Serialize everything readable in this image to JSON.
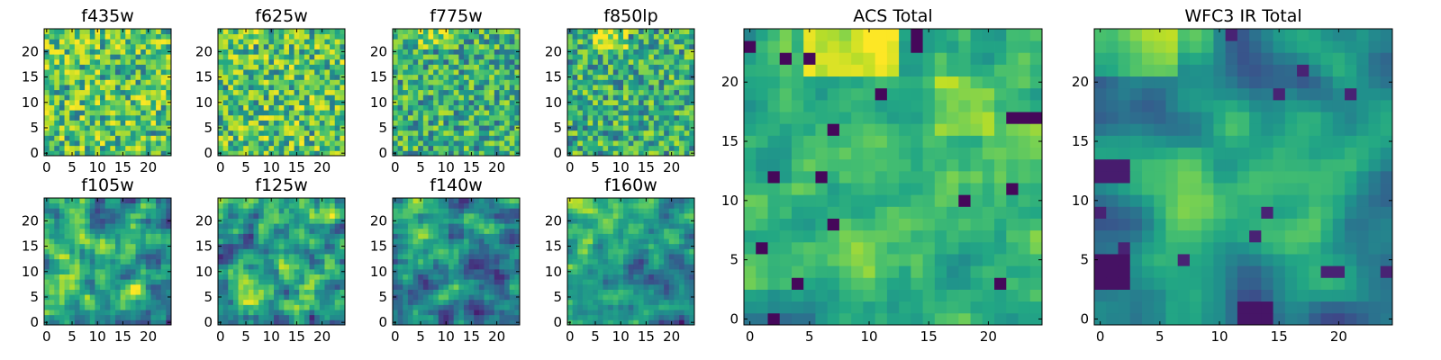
{
  "chart_data": {
    "type": "heatmap",
    "colormap": "viridis",
    "grid": false,
    "panels": [
      {
        "title": "f435w",
        "rows": 25,
        "cols": 25,
        "xticks": [
          0,
          5,
          10,
          15,
          20
        ],
        "yticks": [
          0,
          5,
          10,
          15,
          20
        ],
        "xlim": [
          -0.5,
          24.5
        ],
        "ylim": [
          -0.5,
          24.5
        ],
        "pattern": "noise",
        "seed": 11
      },
      {
        "title": "f625w",
        "rows": 25,
        "cols": 25,
        "xticks": [
          0,
          5,
          10,
          15,
          20
        ],
        "yticks": [
          0,
          5,
          10,
          15,
          20
        ],
        "xlim": [
          -0.5,
          24.5
        ],
        "ylim": [
          -0.5,
          24.5
        ],
        "pattern": "noise",
        "seed": 23
      },
      {
        "title": "f775w",
        "rows": 25,
        "cols": 25,
        "xticks": [
          0,
          5,
          10,
          15,
          20
        ],
        "yticks": [
          0,
          5,
          10,
          15,
          20
        ],
        "xlim": [
          -0.5,
          24.5
        ],
        "ylim": [
          -0.5,
          24.5
        ],
        "pattern": "noise_top",
        "seed": 37
      },
      {
        "title": "f850lp",
        "rows": 25,
        "cols": 25,
        "xticks": [
          0,
          5,
          10,
          15,
          20
        ],
        "yticks": [
          0,
          5,
          10,
          15,
          20
        ],
        "xlim": [
          -0.5,
          24.5
        ],
        "ylim": [
          -0.5,
          24.5
        ],
        "pattern": "noise_top",
        "seed": 41
      },
      {
        "title": "f105w",
        "rows": 25,
        "cols": 25,
        "xticks": [
          0,
          5,
          10,
          15,
          20
        ],
        "yticks": [
          0,
          5,
          10,
          15,
          20
        ],
        "xlim": [
          -0.5,
          24.5
        ],
        "ylim": [
          -0.5,
          24.5
        ],
        "pattern": "smooth",
        "seed": 53
      },
      {
        "title": "f125w",
        "rows": 25,
        "cols": 25,
        "xticks": [
          0,
          5,
          10,
          15,
          20
        ],
        "yticks": [
          0,
          5,
          10,
          15,
          20
        ],
        "xlim": [
          -0.5,
          24.5
        ],
        "ylim": [
          -0.5,
          24.5
        ],
        "pattern": "smooth",
        "seed": 67
      },
      {
        "title": "f140w",
        "rows": 25,
        "cols": 25,
        "xticks": [
          0,
          5,
          10,
          15,
          20
        ],
        "yticks": [
          0,
          5,
          10,
          15,
          20
        ],
        "xlim": [
          -0.5,
          24.5
        ],
        "ylim": [
          -0.5,
          24.5
        ],
        "pattern": "smooth_topleft",
        "seed": 71
      },
      {
        "title": "f160w",
        "rows": 25,
        "cols": 25,
        "xticks": [
          0,
          5,
          10,
          15,
          20
        ],
        "yticks": [
          0,
          5,
          10,
          15,
          20
        ],
        "xlim": [
          -0.5,
          24.5
        ],
        "ylim": [
          -0.5,
          24.5
        ],
        "pattern": "smooth_topleft",
        "seed": 83
      },
      {
        "title": "ACS Total",
        "rows": 25,
        "cols": 25,
        "xticks": [
          0,
          5,
          10,
          15,
          20
        ],
        "yticks": [
          0,
          5,
          10,
          15,
          20
        ],
        "xlim": [
          -0.5,
          24.5
        ],
        "ylim": [
          -0.5,
          24.5
        ],
        "pattern": "acs",
        "seed": 97
      },
      {
        "title": "WFC3 IR Total",
        "rows": 25,
        "cols": 25,
        "xticks": [
          0,
          5,
          10,
          15,
          20
        ],
        "yticks": [
          0,
          5,
          10,
          15,
          20
        ],
        "xlim": [
          -0.5,
          24.5
        ],
        "ylim": [
          -0.5,
          24.5
        ],
        "pattern": "ir",
        "seed": 101
      }
    ]
  }
}
